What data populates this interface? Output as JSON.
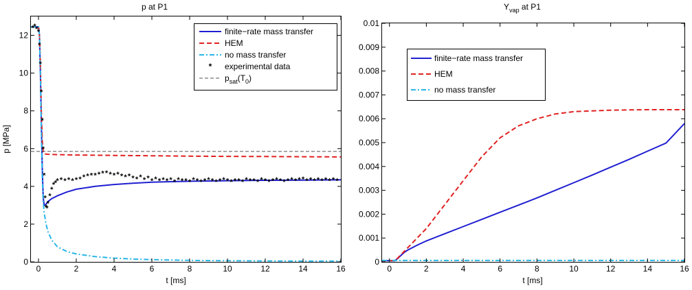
{
  "chart_data": [
    {
      "type": "line",
      "title": "p at P1",
      "xlabel": "t [ms]",
      "ylabel": "p [MPa]",
      "xlim": [
        -0.4,
        16
      ],
      "ylim": [
        0,
        13
      ],
      "xticks": [
        0,
        2,
        4,
        6,
        8,
        10,
        12,
        14,
        16
      ],
      "yticks": [
        0,
        2,
        4,
        6,
        8,
        10,
        12
      ],
      "ytick_labels": [
        "0",
        "2",
        "4",
        "6",
        "8",
        "10",
        "12"
      ],
      "grid": false,
      "legend_position": "top-right",
      "legend": [
        {
          "label": "finite−rate mass transfer",
          "style": "solid",
          "color": "#1f1fd1"
        },
        {
          "label": "HEM",
          "style": "dashed",
          "color": "#e02020"
        },
        {
          "label": "no mass transfer",
          "style": "dashdot",
          "color": "#29b6e8"
        },
        {
          "label": "experimental data",
          "style": "markers",
          "color": "#000000"
        },
        {
          "label": "p",
          "sub": "sat",
          "suffix": "(T",
          "sub2": "0",
          "tail": ")",
          "style": "dashed",
          "color": "#555555"
        }
      ],
      "series": [
        {
          "name": "finite−rate mass transfer",
          "color": "#1f1fd1",
          "style": "solid",
          "x": [
            -0.4,
            0.0,
            0.05,
            0.1,
            0.15,
            0.2,
            0.25,
            0.3,
            0.4,
            0.5,
            0.7,
            1.0,
            1.5,
            2,
            3,
            4,
            5,
            6,
            7,
            8,
            10,
            12,
            14,
            16
          ],
          "y": [
            12.45,
            12.45,
            12.0,
            10.0,
            7.5,
            5.0,
            3.4,
            3.0,
            3.05,
            3.2,
            3.35,
            3.5,
            3.7,
            3.85,
            4.0,
            4.1,
            4.17,
            4.22,
            4.25,
            4.27,
            4.3,
            4.32,
            4.33,
            4.35
          ]
        },
        {
          "name": "HEM",
          "color": "#e02020",
          "style": "dashed",
          "x": [
            -0.4,
            0.0,
            0.05,
            0.1,
            0.15,
            0.2,
            0.25,
            0.3,
            0.5,
            1,
            2,
            4,
            6,
            8,
            10,
            12,
            14,
            16
          ],
          "y": [
            12.45,
            12.45,
            12.0,
            10.5,
            8.0,
            6.4,
            5.8,
            5.72,
            5.7,
            5.68,
            5.66,
            5.64,
            5.62,
            5.6,
            5.59,
            5.58,
            5.57,
            5.56
          ]
        },
        {
          "name": "no mass transfer",
          "color": "#29b6e8",
          "style": "dashdot",
          "x": [
            -0.4,
            0.0,
            0.05,
            0.1,
            0.15,
            0.2,
            0.25,
            0.3,
            0.4,
            0.5,
            0.7,
            1.0,
            1.5,
            2,
            3,
            4,
            5,
            6,
            8,
            10,
            12,
            14,
            16
          ],
          "y": [
            12.45,
            12.45,
            12.0,
            10.0,
            7.0,
            4.5,
            3.2,
            2.6,
            2.0,
            1.6,
            1.15,
            0.8,
            0.55,
            0.42,
            0.28,
            0.2,
            0.15,
            0.12,
            0.08,
            0.06,
            0.05,
            0.04,
            0.04
          ]
        },
        {
          "name": "experimental data",
          "color": "#000000",
          "style": "markers",
          "x": [
            -0.3,
            -0.2,
            -0.1,
            0.0,
            0.05,
            0.1,
            0.15,
            0.2,
            0.25,
            0.3,
            0.35,
            0.4,
            0.45,
            0.5,
            0.6,
            0.7,
            0.8,
            0.9,
            1.0,
            1.2,
            1.4,
            1.6,
            1.8,
            2.0,
            2.2,
            2.4,
            2.6,
            2.8,
            3.0,
            3.2,
            3.4,
            3.6,
            3.8,
            4.0,
            4.2,
            4.4,
            4.6,
            4.8,
            5.0,
            5.2,
            5.4,
            5.6,
            5.8,
            6.0,
            6.2,
            6.4,
            6.6,
            6.8,
            7.0,
            7.2,
            7.4,
            7.6,
            7.8,
            8.0,
            8.2,
            8.4,
            8.6,
            8.8,
            9.0,
            9.2,
            9.4,
            9.6,
            9.8,
            10.0,
            10.2,
            10.4,
            10.6,
            10.8,
            11.0,
            11.2,
            11.4,
            11.6,
            11.8,
            12.0,
            12.2,
            12.4,
            12.6,
            12.8,
            13.0,
            13.2,
            13.4,
            13.6,
            13.8,
            14.0,
            14.2,
            14.4,
            14.6,
            14.8,
            15.0,
            15.2,
            15.4,
            15.6,
            15.8
          ],
          "y": [
            12.4,
            12.5,
            12.35,
            12.2,
            11.5,
            10.5,
            9.0,
            7.5,
            6.0,
            4.6,
            3.4,
            2.9,
            2.85,
            3.1,
            3.5,
            3.85,
            4.1,
            4.2,
            4.3,
            4.35,
            4.3,
            4.35,
            4.3,
            4.35,
            4.4,
            4.5,
            4.55,
            4.6,
            4.6,
            4.65,
            4.7,
            4.72,
            4.65,
            4.6,
            4.65,
            4.55,
            4.5,
            4.55,
            4.45,
            4.4,
            4.5,
            4.35,
            4.45,
            4.3,
            4.4,
            4.3,
            4.35,
            4.3,
            4.35,
            4.25,
            4.35,
            4.3,
            4.3,
            4.25,
            4.35,
            4.3,
            4.25,
            4.3,
            4.35,
            4.3,
            4.25,
            4.3,
            4.35,
            4.3,
            4.25,
            4.3,
            4.3,
            4.25,
            4.35,
            4.3,
            4.3,
            4.25,
            4.35,
            4.3,
            4.25,
            4.3,
            4.35,
            4.3,
            4.25,
            4.3,
            4.35,
            4.3,
            4.35,
            4.4,
            4.3,
            4.35,
            4.3,
            4.35,
            4.3,
            4.35,
            4.3,
            4.35,
            4.3
          ]
        },
        {
          "name": "p_sat(T_0)",
          "color": "#555555",
          "style": "dashed",
          "x": [
            -0.4,
            16
          ],
          "y": [
            5.85,
            5.85
          ]
        }
      ]
    },
    {
      "type": "line",
      "title": "Y",
      "title_sub": "vap",
      "title_suffix": " at P1",
      "xlabel": "t [ms]",
      "ylabel": "",
      "xlim": [
        -0.4,
        16
      ],
      "ylim": [
        0,
        0.01
      ],
      "xticks": [
        0,
        2,
        4,
        6,
        8,
        10,
        12,
        14,
        16
      ],
      "yticks": [
        0,
        0.001,
        0.002,
        0.003,
        0.004,
        0.005,
        0.006,
        0.007,
        0.008,
        0.009,
        0.01
      ],
      "ytick_labels": [
        "0",
        "0.001",
        "0.002",
        "0.003",
        "0.004",
        "0.005",
        "0.006",
        "0.007",
        "0.008",
        "0.009",
        "0.01"
      ],
      "grid": false,
      "legend_position": "top-left",
      "legend": [
        {
          "label": "finite−rate mass transfer",
          "style": "solid",
          "color": "#1f1fd1"
        },
        {
          "label": "HEM",
          "style": "dashed",
          "color": "#e02020"
        },
        {
          "label": "no mass transfer",
          "style": "dashdot",
          "color": "#29b6e8"
        }
      ],
      "series": [
        {
          "name": "finite−rate mass transfer",
          "color": "#1f1fd1",
          "style": "solid",
          "x": [
            -0.4,
            0.3,
            0.5,
            0.8,
            1,
            1.5,
            2,
            3,
            4,
            5,
            6,
            7,
            8,
            9,
            10,
            11,
            12,
            13,
            14,
            15,
            16
          ],
          "y": [
            5e-05,
            5e-05,
            0.00018,
            0.0004,
            0.0005,
            0.0007,
            0.00088,
            0.00118,
            0.00148,
            0.00178,
            0.00208,
            0.00238,
            0.00268,
            0.003,
            0.00332,
            0.00364,
            0.00397,
            0.0043,
            0.00464,
            0.00498,
            0.0058
          ]
        },
        {
          "name": "HEM",
          "color": "#e02020",
          "style": "dashed",
          "x": [
            -0.4,
            0.3,
            0.5,
            1,
            1.5,
            2,
            3,
            4,
            5,
            6,
            7,
            8,
            9,
            10,
            11,
            12,
            13,
            14,
            15,
            16
          ],
          "y": [
            5e-05,
            5e-05,
            0.0002,
            0.0006,
            0.001,
            0.0014,
            0.0024,
            0.0034,
            0.0044,
            0.0052,
            0.0057,
            0.006,
            0.0062,
            0.0063,
            0.00633,
            0.00636,
            0.00637,
            0.00638,
            0.00638,
            0.00638
          ]
        },
        {
          "name": "no mass transfer",
          "color": "#29b6e8",
          "style": "dashdot",
          "x": [
            -0.4,
            16
          ],
          "y": [
            6e-05,
            6e-05
          ]
        }
      ]
    }
  ]
}
